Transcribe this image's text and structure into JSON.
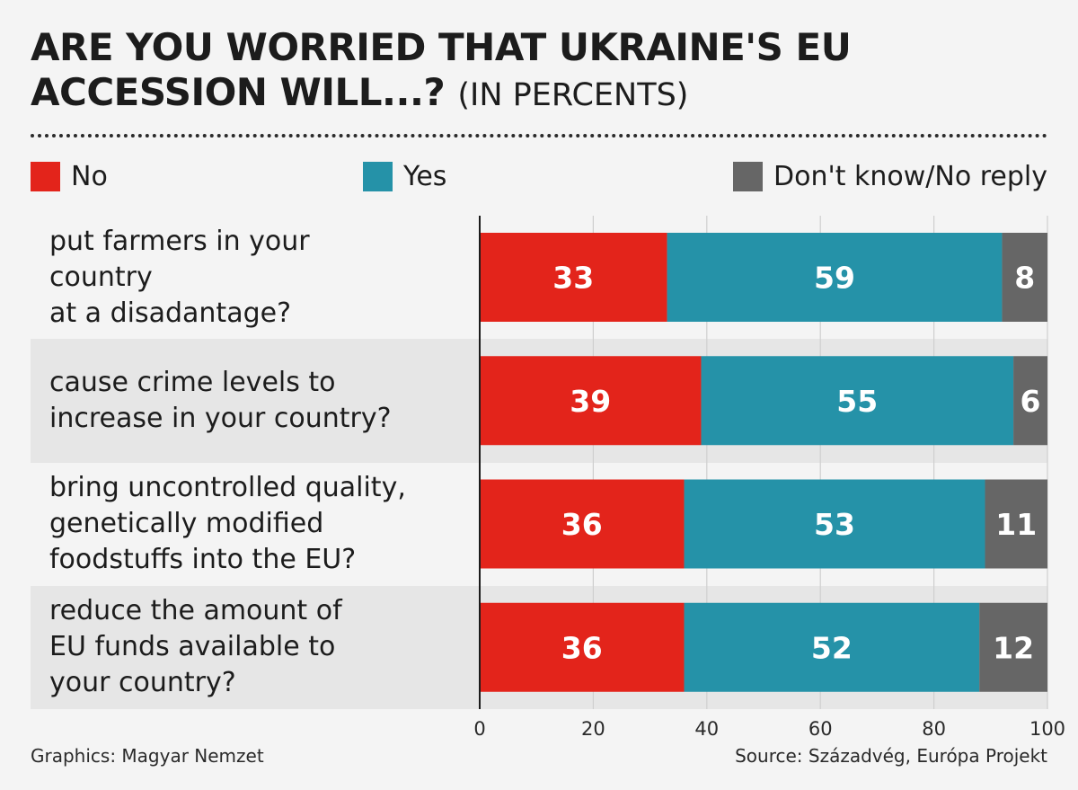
{
  "header": {
    "title_main": "ARE YOU WORRIED THAT UKRAINE'S EU ACCESSION WILL...?",
    "title_unit": "(IN PERCENTS)"
  },
  "legend": [
    {
      "label": "No",
      "color": "#e3241b"
    },
    {
      "label": "Yes",
      "color": "#2592a8"
    },
    {
      "label": "Don't know/No reply",
      "color": "#666666"
    }
  ],
  "footer": {
    "graphics": "Graphics: Magyar Nemzet",
    "source": "Source: Századvég, Európa Projekt"
  },
  "chart_data": {
    "type": "bar",
    "orientation": "horizontal",
    "stacked": true,
    "categories": [
      "put farmers in your\ncountry\nat a disadantage?",
      "cause crime levels to\nincrease in your country?",
      "bring uncontrolled quality,\ngenetically modified\nfoodstuffs into the EU?",
      "reduce the amount of\nEU funds available to\nyour country?"
    ],
    "series": [
      {
        "name": "No",
        "color": "#e3241b",
        "values": [
          33,
          39,
          36,
          36
        ]
      },
      {
        "name": "Yes",
        "color": "#2592a8",
        "values": [
          59,
          55,
          53,
          52
        ]
      },
      {
        "name": "Don't know/No reply",
        "color": "#666666",
        "values": [
          8,
          6,
          11,
          12
        ]
      }
    ],
    "xlim": [
      0,
      100
    ],
    "xticks": [
      0,
      20,
      40,
      60,
      80,
      100
    ],
    "grid": true,
    "legend_position": "top",
    "data_labels": true
  }
}
